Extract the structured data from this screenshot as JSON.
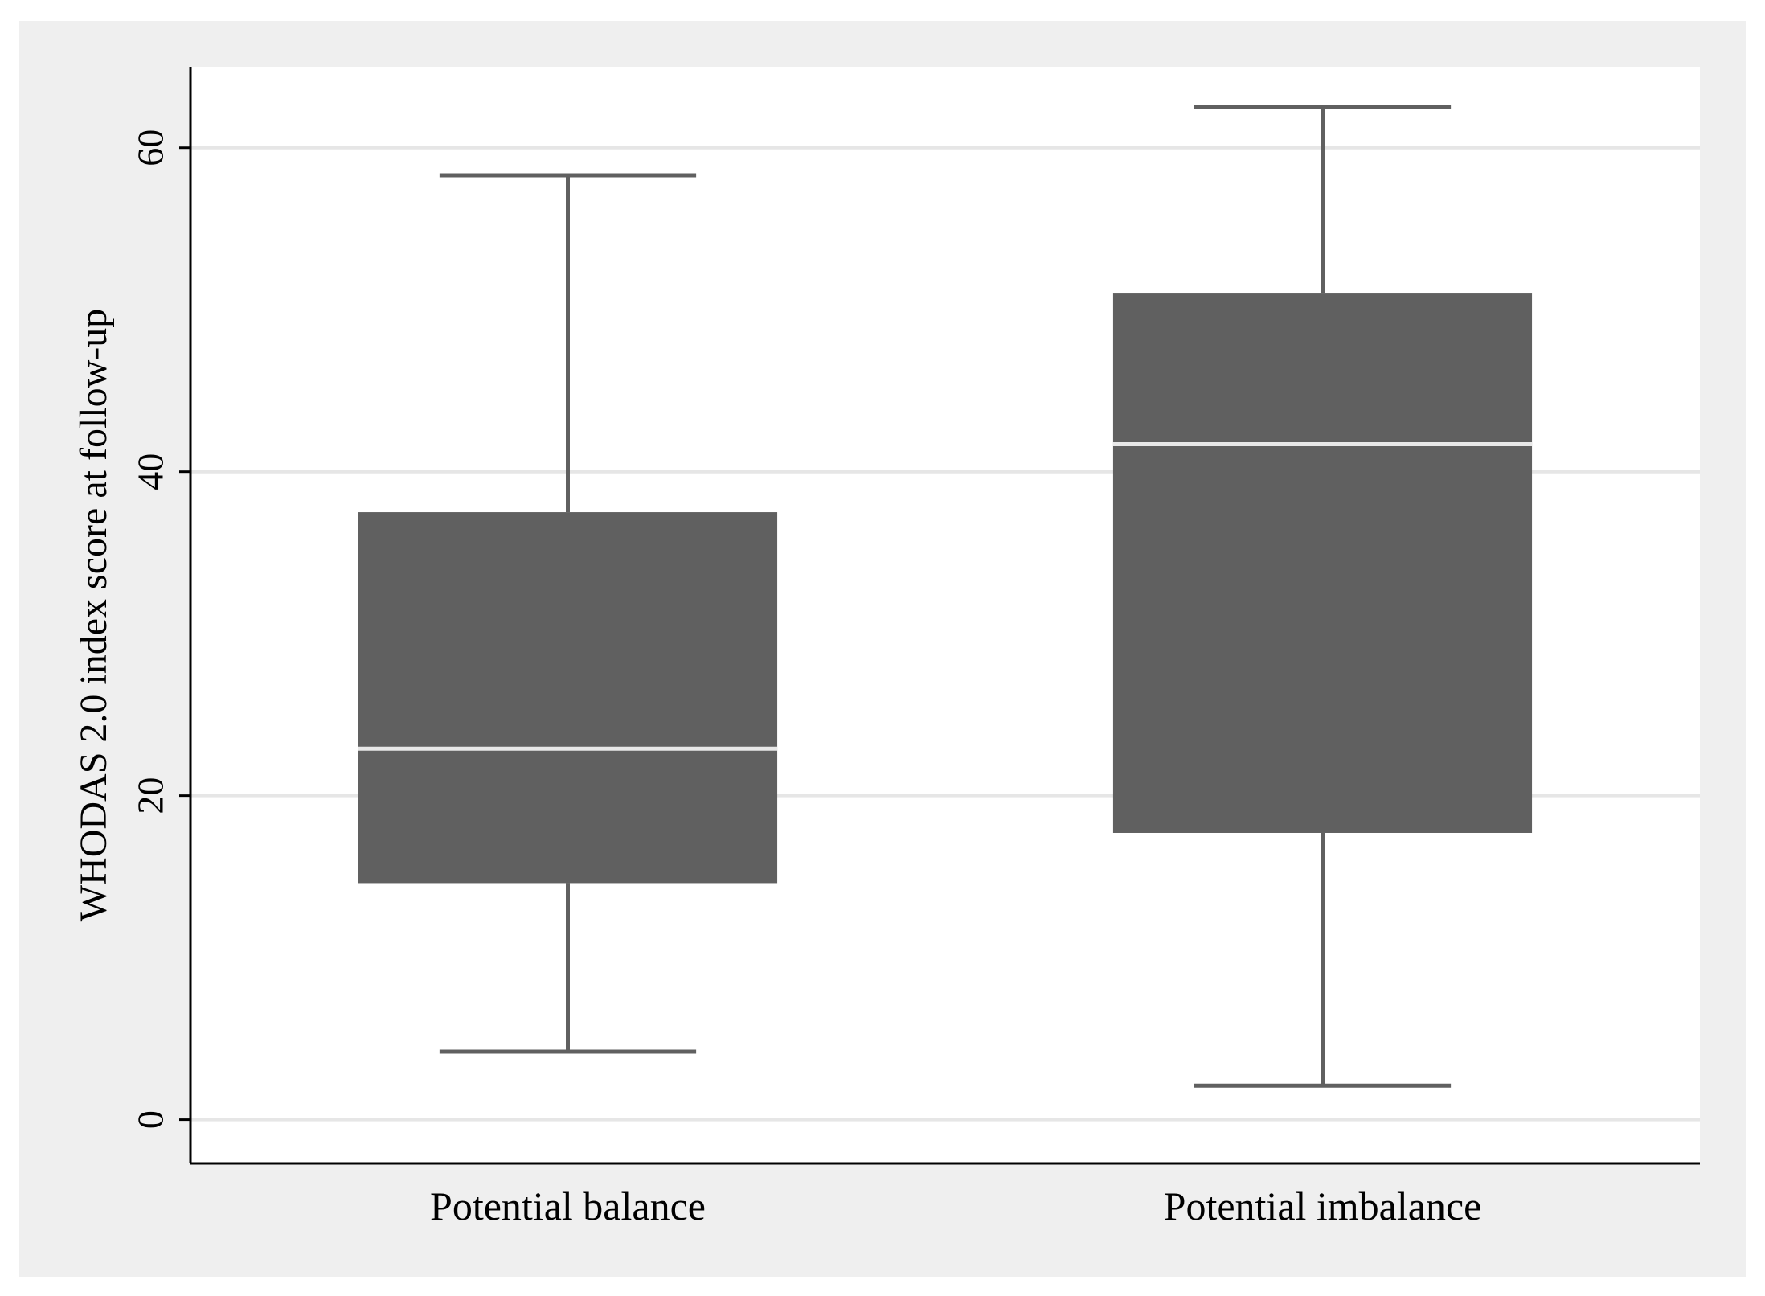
{
  "chart_data": {
    "type": "box",
    "title": "",
    "xlabel": "",
    "ylabel": "WHODAS 2.0 index score at follow-up",
    "ylim": [
      -2.7,
      65
    ],
    "yticks": [
      0,
      20,
      40,
      60
    ],
    "grid": true,
    "categories": [
      "Potential balance",
      "Potential imbalance"
    ],
    "boxes": [
      {
        "category": "Potential balance",
        "whisker_low": 4.2,
        "q1": 14.6,
        "median": 22.9,
        "q3": 37.5,
        "whisker_high": 58.3
      },
      {
        "category": "Potential imbalance",
        "whisker_low": 2.1,
        "q1": 17.7,
        "median": 41.7,
        "q3": 51.0,
        "whisker_high": 62.5
      }
    ],
    "colors": {
      "box_fill": "#606060",
      "whisker": "#606060",
      "median_line": "#e8e8e8",
      "gridline": "#e6e6e6",
      "outer_background": "#efefef",
      "plot_background": "#ffffff"
    }
  }
}
